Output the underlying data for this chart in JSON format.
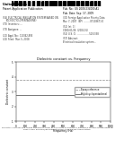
{
  "title": "ELECTRICAL INSULATION SYSTEM BASED ON POLY(DICYCLOPENTADIENE)",
  "patent_header": {
    "left_lines": [
      "United States",
      "Patent Application Publication",
      "Pub. No.: US 2009/0234000 A1",
      "Pub. Date: Sep. 17, 2009"
    ],
    "app_number": "12/042,893",
    "filing_date": "Mar. 5, 2008"
  },
  "graph": {
    "title": "Dielectric constant vs. Frequency",
    "xlabel": "Frequency (Hz)",
    "ylabel": "Dielectric constant",
    "xlim": [
      0,
      1000
    ],
    "ylim": [
      1,
      5
    ],
    "yticks": [
      1,
      2,
      3,
      4,
      5
    ],
    "xticks": [
      0,
      100,
      200,
      300,
      400,
      500,
      600,
      700,
      800,
      900,
      1000
    ],
    "series": [
      {
        "label": "Epoxy reference",
        "color": "#888888",
        "linestyle": "--",
        "y_value": 3.8,
        "x_start": 0,
        "x_end": 1000
      },
      {
        "label": "Poly(dicyclopentadiene)",
        "color": "#444444",
        "linestyle": "-",
        "y_value": 2.8,
        "x_start": 0,
        "x_end": 1000
      }
    ]
  },
  "background_color": "#ffffff",
  "text_color": "#000000",
  "caption": "Dielectric constant and charge dissipation factor as a function of frequency measured at room temperature for epoxy resin and poly(dicyclopentadiene) resin at 25C temperature."
}
